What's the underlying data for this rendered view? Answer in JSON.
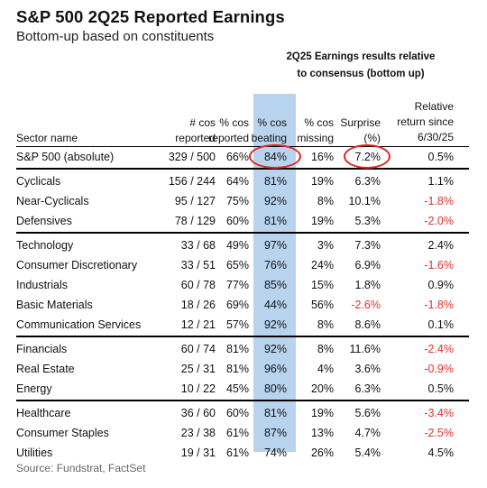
{
  "title": "S&P 500 2Q25 Reported Earnings",
  "subtitle": "Bottom-up based on constituents",
  "group_header": "2Q25 Earnings results relative\nto consensus (bottom up)",
  "columns": {
    "sector": "Sector name",
    "cos_reported": "# cos\nreported",
    "pct_reported": "% cos\nreported",
    "pct_beating": "% cos\nbeating",
    "pct_missing": "% cos\nmissing",
    "surprise": "Surprise\n(%)",
    "relative": "Relative\nreturn since\n6/30/25"
  },
  "colors": {
    "highlight": "#b8d3ee",
    "negative": "#e0302a",
    "circle": "#e3261f"
  },
  "groups": [
    [
      {
        "name": "S&P 500 (absolute)",
        "cos": "329 / 500",
        "reported": "66%",
        "beating": "84%",
        "missing": "16%",
        "surprise": "7.2%",
        "relative": "0.5%",
        "neg_surprise": false,
        "neg_relative": false
      }
    ],
    [
      {
        "name": "Cyclicals",
        "cos": "156 / 244",
        "reported": "64%",
        "beating": "81%",
        "missing": "19%",
        "surprise": "6.3%",
        "relative": "1.1%",
        "neg_surprise": false,
        "neg_relative": false
      },
      {
        "name": "Near-Cyclicals",
        "cos": "95 / 127",
        "reported": "75%",
        "beating": "92%",
        "missing": "8%",
        "surprise": "10.1%",
        "relative": "-1.8%",
        "neg_surprise": false,
        "neg_relative": true
      },
      {
        "name": "Defensives",
        "cos": "78 / 129",
        "reported": "60%",
        "beating": "81%",
        "missing": "19%",
        "surprise": "5.3%",
        "relative": "-2.0%",
        "neg_surprise": false,
        "neg_relative": true
      }
    ],
    [
      {
        "name": "Technology",
        "cos": "33 / 68",
        "reported": "49%",
        "beating": "97%",
        "missing": "3%",
        "surprise": "7.3%",
        "relative": "2.4%",
        "neg_surprise": false,
        "neg_relative": false
      },
      {
        "name": "Consumer Discretionary",
        "cos": "33 / 51",
        "reported": "65%",
        "beating": "76%",
        "missing": "24%",
        "surprise": "6.9%",
        "relative": "-1.6%",
        "neg_surprise": false,
        "neg_relative": true
      },
      {
        "name": "Industrials",
        "cos": "60 / 78",
        "reported": "77%",
        "beating": "85%",
        "missing": "15%",
        "surprise": "1.8%",
        "relative": "0.9%",
        "neg_surprise": false,
        "neg_relative": false
      },
      {
        "name": "Basic Materials",
        "cos": "18 / 26",
        "reported": "69%",
        "beating": "44%",
        "missing": "56%",
        "surprise": "-2.6%",
        "relative": "-1.8%",
        "neg_surprise": true,
        "neg_relative": true
      },
      {
        "name": "Communication Services",
        "cos": "12 / 21",
        "reported": "57%",
        "beating": "92%",
        "missing": "8%",
        "surprise": "8.6%",
        "relative": "0.1%",
        "neg_surprise": false,
        "neg_relative": false
      }
    ],
    [
      {
        "name": "Financials",
        "cos": "60 / 74",
        "reported": "81%",
        "beating": "92%",
        "missing": "8%",
        "surprise": "11.6%",
        "relative": "-2.4%",
        "neg_surprise": false,
        "neg_relative": true
      },
      {
        "name": "Real Estate",
        "cos": "25 / 31",
        "reported": "81%",
        "beating": "96%",
        "missing": "4%",
        "surprise": "3.6%",
        "relative": "-0.9%",
        "neg_surprise": false,
        "neg_relative": true
      },
      {
        "name": "Energy",
        "cos": "10 / 22",
        "reported": "45%",
        "beating": "80%",
        "missing": "20%",
        "surprise": "6.3%",
        "relative": "0.5%",
        "neg_surprise": false,
        "neg_relative": false
      }
    ],
    [
      {
        "name": "Healthcare",
        "cos": "36 / 60",
        "reported": "60%",
        "beating": "81%",
        "missing": "19%",
        "surprise": "5.6%",
        "relative": "-3.4%",
        "neg_surprise": false,
        "neg_relative": true
      },
      {
        "name": "Consumer Staples",
        "cos": "23 / 38",
        "reported": "61%",
        "beating": "87%",
        "missing": "13%",
        "surprise": "4.7%",
        "relative": "-2.5%",
        "neg_surprise": false,
        "neg_relative": true
      },
      {
        "name": "Utilities",
        "cos": "19 / 31",
        "reported": "61%",
        "beating": "74%",
        "missing": "26%",
        "surprise": "5.4%",
        "relative": "4.5%",
        "neg_surprise": false,
        "neg_relative": false
      }
    ]
  ],
  "source": "Source: Fundstrat, FactSet"
}
